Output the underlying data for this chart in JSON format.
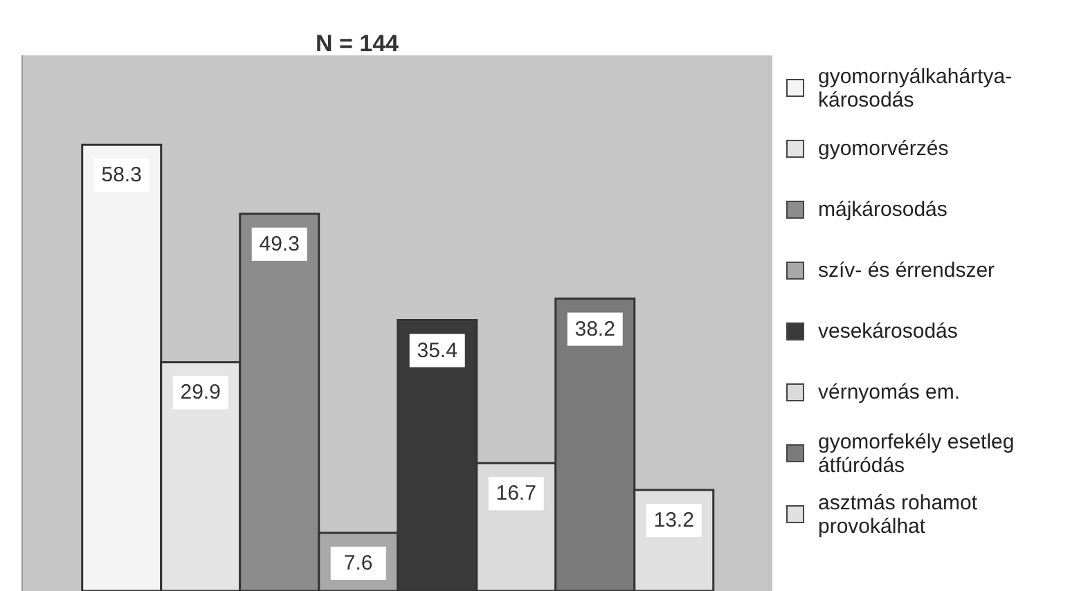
{
  "chart_data": {
    "type": "bar",
    "title": "N = 144",
    "categories": [
      null
    ],
    "series": [
      {
        "name": "gyomornyálkahártya-károsodás",
        "color": "#f4f4f4",
        "values": [
          58.3
        ]
      },
      {
        "name": "gyomorvérzés",
        "color": "#e4e4e4",
        "values": [
          29.9
        ]
      },
      {
        "name": "májkárosodás",
        "color": "#8c8c8c",
        "values": [
          49.3
        ]
      },
      {
        "name": "szív- és érrendszer",
        "color": "#a8a8a8",
        "values": [
          7.6
        ]
      },
      {
        "name": "vesekárosodás",
        "color": "#3a3a3a",
        "values": [
          35.4
        ]
      },
      {
        "name": "vérnyomás em.",
        "color": "#dadada",
        "values": [
          16.7
        ]
      },
      {
        "name": "gyomorfekély esetleg átfúródás",
        "color": "#7a7a7a",
        "values": [
          38.2
        ]
      },
      {
        "name": "asztmás rohamot provokálhat",
        "color": "#e0e0e0",
        "values": [
          13.2
        ]
      }
    ],
    "ylim": [
      0,
      70
    ],
    "legend": "right",
    "data_labels": true
  }
}
